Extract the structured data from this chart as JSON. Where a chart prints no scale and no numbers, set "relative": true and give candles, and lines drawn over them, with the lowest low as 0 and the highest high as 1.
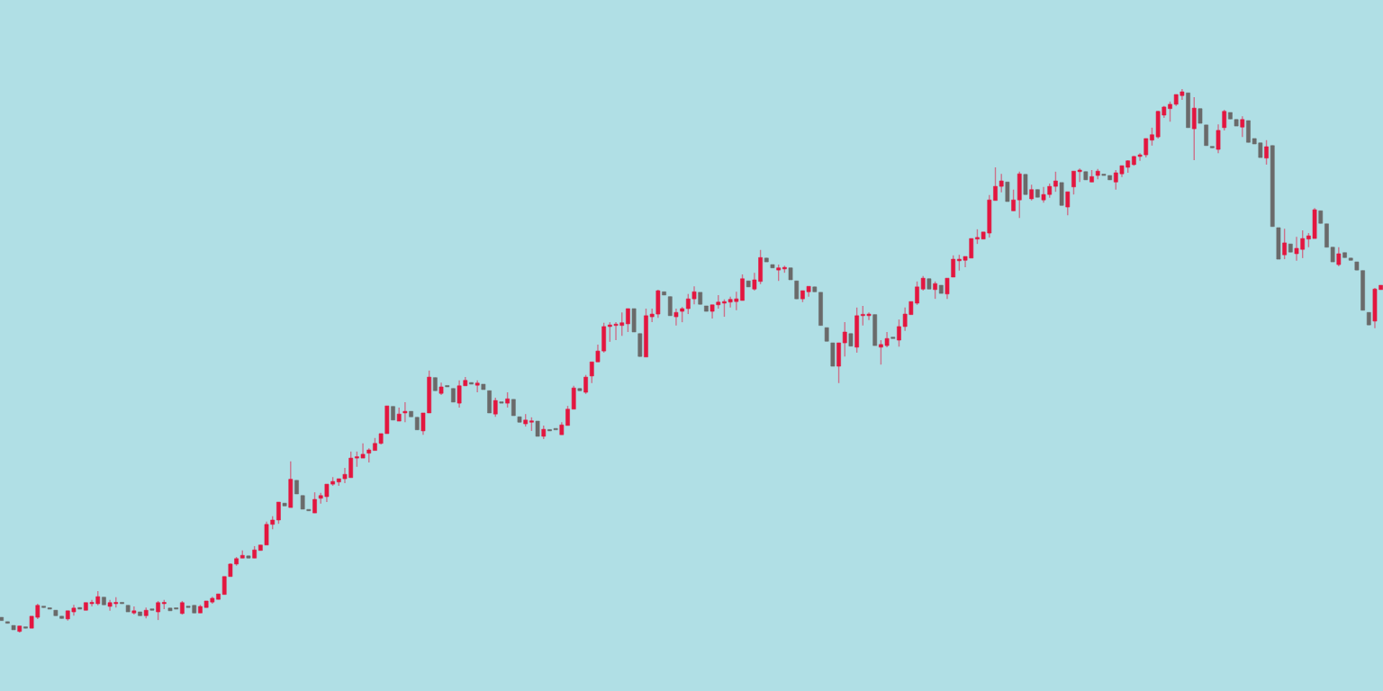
{
  "chart_data": {
    "type": "candlestick",
    "relative": true,
    "colors": [
      "#6a6a6a",
      "#6a6a6a",
      "#6a6a6a",
      "#e3163f",
      "#6a6a6a",
      "#e3163f",
      "#e3163f",
      "#6a6a6a",
      "#6a6a6a",
      "#6a6a6a",
      "#6a6a6a",
      "#e3163f",
      "#e3163f",
      "#6a6a6a",
      "#e3163f",
      "#e3163f",
      "#e3163f",
      "#6a6a6a",
      "#e3163f",
      "#e3163f",
      "#6a6a6a",
      "#6a6a6a",
      "#e3163f",
      "#6a6a6a",
      "#e3163f",
      "#6a6a6a",
      "#e3163f",
      "#e3163f",
      "#6a6a6a",
      "#6a6a6a",
      "#e3163f",
      "#6a6a6a",
      "#6a6a6a",
      "#e3163f",
      "#e3163f",
      "#e3163f",
      "#e3163f",
      "#e3163f",
      "#e3163f",
      "#e3163f",
      "#e3163f",
      "#6a6a6a",
      "#e3163f",
      "#e3163f",
      "#e3163f",
      "#e3163f",
      "#e3163f",
      "#6a6a6a",
      "#e3163f",
      "#6a6a6a",
      "#6a6a6a",
      "#6a6a6a",
      "#e3163f",
      "#e3163f",
      "#e3163f",
      "#e3163f",
      "#e3163f",
      "#e3163f",
      "#e3163f",
      "#e3163f",
      "#e3163f",
      "#e3163f",
      "#e3163f",
      "#e3163f",
      "#e3163f",
      "#6a6a6a",
      "#e3163f",
      "#e3163f",
      "#6a6a6a",
      "#6a6a6a",
      "#e3163f",
      "#e3163f",
      "#6a6a6a",
      "#e3163f",
      "#6a6a6a",
      "#6a6a6a",
      "#e3163f",
      "#e3163f",
      "#6a6a6a",
      "#e3163f",
      "#6a6a6a",
      "#6a6a6a",
      "#e3163f",
      "#6a6a6a",
      "#e3163f",
      "#6a6a6a",
      "#6a6a6a",
      "#e3163f",
      "#e3163f",
      "#6a6a6a",
      "#e3163f",
      "#6a6a6a",
      "#6a6a6a",
      "#e3163f",
      "#e3163f",
      "#e3163f",
      "#6a6a6a",
      "#e3163f",
      "#e3163f",
      "#e3163f",
      "#e3163f",
      "#e3163f",
      "#e3163f",
      "#e3163f",
      "#e3163f",
      "#6a6a6a",
      "#6a6a6a",
      "#e3163f",
      "#e3163f",
      "#e3163f",
      "#6a6a6a",
      "#6a6a6a",
      "#e3163f",
      "#e3163f",
      "#e3163f",
      "#e3163f",
      "#6a6a6a",
      "#6a6a6a",
      "#e3163f",
      "#e3163f",
      "#e3163f",
      "#e3163f",
      "#e3163f",
      "#e3163f",
      "#6a6a6a",
      "#e3163f",
      "#e3163f",
      "#6a6a6a",
      "#6a6a6a",
      "#e3163f",
      "#e3163f",
      "#6a6a6a",
      "#6a6a6a",
      "#e3163f",
      "#e3163f",
      "#6a6a6a",
      "#6a6a6a",
      "#6a6a6a",
      "#6a6a6a",
      "#e3163f",
      "#e3163f",
      "#6a6a6a",
      "#e3163f",
      "#e3163f",
      "#e3163f",
      "#6a6a6a",
      "#e3163f",
      "#e3163f",
      "#6a6a6a",
      "#e3163f",
      "#e3163f",
      "#e3163f",
      "#e3163f",
      "#e3163f",
      "#6a6a6a",
      "#e3163f",
      "#6a6a6a",
      "#e3163f",
      "#e3163f",
      "#e3163f",
      "#e3163f",
      "#e3163f",
      "#e3163f",
      "#e3163f",
      "#e3163f",
      "#e3163f",
      "#e3163f",
      "#6a6a6a",
      "#e3163f",
      "#e3163f",
      "#6a6a6a",
      "#e3163f",
      "#6a6a6a",
      "#e3163f",
      "#e3163f",
      "#e3163f",
      "#6a6a6a",
      "#e3163f",
      "#e3163f",
      "#e3163f",
      "#6a6a6a",
      "#e3163f",
      "#e3163f",
      "#6a6a6a",
      "#6a6a6a",
      "#e3163f",
      "#e3163f",
      "#e3163f",
      "#e3163f",
      "#e3163f",
      "#e3163f",
      "#e3163f",
      "#e3163f",
      "#e3163f",
      "#e3163f",
      "#e3163f",
      "#e3163f",
      "#6a6a6a",
      "#e3163f",
      "#6a6a6a",
      "#6a6a6a",
      "#6a6a6a",
      "#e3163f",
      "#e3163f",
      "#6a6a6a",
      "#6a6a6a",
      "#e3163f",
      "#6a6a6a",
      "#6a6a6a",
      "#6a6a6a",
      "#e3163f",
      "#6a6a6a",
      "#6a6a6a",
      "#e3163f",
      "#6a6a6a",
      "#e3163f",
      "#e3163f",
      "#e3163f",
      "#e3163f",
      "#6a6a6a",
      "#6a6a6a",
      "#6a6a6a",
      "#e3163f",
      "#6a6a6a",
      "#6a6a6a",
      "#6a6a6a",
      "#6a6a6a",
      "#6a6a6a",
      "#e3163f",
      "#e3163f"
    ],
    "categories": [
      null,
      null,
      null,
      null,
      null,
      null,
      null,
      null,
      null,
      null,
      null,
      null,
      null,
      null,
      null,
      null,
      null,
      null,
      null,
      null,
      null,
      null,
      null,
      null,
      null,
      null,
      null,
      null,
      null,
      null,
      null,
      null,
      null,
      null,
      null,
      null,
      null,
      null,
      null,
      null,
      null,
      null,
      null,
      null,
      null,
      null,
      null,
      null,
      null,
      null,
      null,
      null,
      null,
      null,
      null,
      null,
      null,
      null,
      null,
      null,
      null,
      null,
      null,
      null,
      null,
      null,
      null,
      null,
      null,
      null,
      null,
      null,
      null,
      null,
      null,
      null,
      null,
      null,
      null,
      null,
      null,
      null,
      null,
      null,
      null,
      null,
      null,
      null,
      null,
      null,
      null,
      null,
      null,
      null,
      null,
      null,
      null,
      null,
      null,
      null,
      null,
      null,
      null,
      null,
      null,
      null,
      null,
      null,
      null,
      null,
      null,
      null,
      null,
      null,
      null,
      null,
      null,
      null,
      null,
      null,
      null,
      null,
      null,
      null,
      null,
      null,
      null,
      null,
      null,
      null,
      null,
      null,
      null,
      null,
      null,
      null,
      null,
      null,
      null,
      null,
      null,
      null,
      null,
      null,
      null,
      null,
      null,
      null,
      null,
      null,
      null,
      null,
      null,
      null,
      null,
      null,
      null,
      null,
      null,
      null,
      null,
      null,
      null,
      null,
      null,
      null,
      null,
      null,
      null,
      null,
      null,
      null,
      null,
      null,
      null,
      null,
      null,
      null,
      null,
      null,
      null,
      null,
      null,
      null,
      null,
      null,
      null,
      null,
      null,
      null,
      null,
      null,
      null,
      null,
      null,
      null,
      null,
      null,
      null,
      null,
      null,
      null,
      null,
      null,
      null,
      null,
      null,
      null,
      null,
      null,
      null,
      null,
      null,
      null,
      null,
      null,
      null,
      null,
      null,
      null,
      null,
      null,
      null,
      null,
      null,
      null,
      null,
      null,
      null,
      null
    ],
    "ohlc": [
      [
        0.028,
        0.028,
        0.022,
        0.022
      ],
      [
        0.02,
        0.02,
        0.017,
        0.017
      ],
      [
        0.013,
        0.013,
        0.005,
        0.005
      ],
      [
        0.002,
        0.012,
        0,
        0.012
      ],
      [
        0.01,
        0.01,
        0.008,
        0.008
      ],
      [
        0.008,
        0.03,
        0.008,
        0.03
      ],
      [
        0.028,
        0.053,
        0.025,
        0.05
      ],
      [
        0.048,
        0.048,
        0.046,
        0.046
      ],
      [
        0.045,
        0.045,
        0.043,
        0.043
      ],
      [
        0.041,
        0.041,
        0.031,
        0.031
      ],
      [
        0.03,
        0.03,
        0.026,
        0.026
      ],
      [
        0.025,
        0.04,
        0.022,
        0.04
      ],
      [
        0.038,
        0.051,
        0.031,
        0.045
      ],
      [
        0.046,
        0.046,
        0.043,
        0.043
      ],
      [
        0.041,
        0.055,
        0.041,
        0.055
      ],
      [
        0.053,
        0.06,
        0.048,
        0.055
      ],
      [
        0.053,
        0.076,
        0.05,
        0.066
      ],
      [
        0.065,
        0.065,
        0.051,
        0.051
      ],
      [
        0.048,
        0.06,
        0.04,
        0.055
      ],
      [
        0.053,
        0.065,
        0.046,
        0.055
      ],
      [
        0.055,
        0.055,
        0.053,
        0.053
      ],
      [
        0.05,
        0.05,
        0.038,
        0.038
      ],
      [
        0.036,
        0.048,
        0.033,
        0.04
      ],
      [
        0.038,
        0.038,
        0.031,
        0.031
      ],
      [
        0.031,
        0.046,
        0.026,
        0.041
      ],
      [
        0.043,
        0.043,
        0.041,
        0.041
      ],
      [
        0.038,
        0.058,
        0.023,
        0.055
      ],
      [
        0.053,
        0.06,
        0.043,
        0.055
      ],
      [
        0.045,
        0.045,
        0.04,
        0.04
      ],
      [
        0.043,
        0.043,
        0.043,
        0.043
      ],
      [
        0.035,
        0.058,
        0.033,
        0.055
      ],
      [
        0.046,
        0.046,
        0.046,
        0.046
      ],
      [
        0.05,
        0.05,
        0.036,
        0.036
      ],
      [
        0.036,
        0.051,
        0.036,
        0.048
      ],
      [
        0.046,
        0.058,
        0.046,
        0.058
      ],
      [
        0.056,
        0.066,
        0.053,
        0.063
      ],
      [
        0.061,
        0.071,
        0.061,
        0.071
      ],
      [
        0.07,
        0.103,
        0.07,
        0.103
      ],
      [
        0.103,
        0.127,
        0.103,
        0.126
      ],
      [
        0.126,
        0.139,
        0.123,
        0.136
      ],
      [
        0.137,
        0.151,
        0.137,
        0.142
      ],
      [
        0.141,
        0.141,
        0.137,
        0.137
      ],
      [
        0.137,
        0.159,
        0.137,
        0.152
      ],
      [
        0.151,
        0.161,
        0.151,
        0.161
      ],
      [
        0.161,
        0.204,
        0.161,
        0.199
      ],
      [
        0.199,
        0.214,
        0.19,
        0.207
      ],
      [
        0.207,
        0.24,
        0.2,
        0.24
      ],
      [
        0.238,
        0.238,
        0.233,
        0.233
      ],
      [
        0.23,
        0.315,
        0.23,
        0.282
      ],
      [
        0.28,
        0.28,
        0.255,
        0.255
      ],
      [
        0.252,
        0.252,
        0.227,
        0.227
      ],
      [
        0.225,
        0.225,
        0.224,
        0.224
      ],
      [
        0.22,
        0.258,
        0.22,
        0.245
      ],
      [
        0.247,
        0.257,
        0.237,
        0.252
      ],
      [
        0.25,
        0.273,
        0.24,
        0.273
      ],
      [
        0.273,
        0.286,
        0.27,
        0.278
      ],
      [
        0.277,
        0.283,
        0.27,
        0.283
      ],
      [
        0.283,
        0.303,
        0.275,
        0.291
      ],
      [
        0.285,
        0.333,
        0.285,
        0.321
      ],
      [
        0.321,
        0.333,
        0.305,
        0.323
      ],
      [
        0.321,
        0.348,
        0.321,
        0.328
      ],
      [
        0.33,
        0.339,
        0.313,
        0.336
      ],
      [
        0.335,
        0.358,
        0.335,
        0.348
      ],
      [
        0.348,
        0.366,
        0.346,
        0.366
      ],
      [
        0.366,
        0.417,
        0.366,
        0.417
      ],
      [
        0.416,
        0.416,
        0.391,
        0.391
      ],
      [
        0.389,
        0.414,
        0.389,
        0.402
      ],
      [
        0.404,
        0.424,
        0.387,
        0.407
      ],
      [
        0.407,
        0.407,
        0.397,
        0.397
      ],
      [
        0.396,
        0.396,
        0.373,
        0.373
      ],
      [
        0.371,
        0.404,
        0.364,
        0.404
      ],
      [
        0.404,
        0.482,
        0.404,
        0.47
      ],
      [
        0.469,
        0.469,
        0.445,
        0.445
      ],
      [
        0.44,
        0.46,
        0.437,
        0.452
      ],
      [
        0.452,
        0.452,
        0.452,
        0.452
      ],
      [
        0.449,
        0.449,
        0.424,
        0.424
      ],
      [
        0.422,
        0.464,
        0.414,
        0.454
      ],
      [
        0.454,
        0.47,
        0.454,
        0.464
      ],
      [
        0.46,
        0.46,
        0.457,
        0.457
      ],
      [
        0.455,
        0.464,
        0.442,
        0.459
      ],
      [
        0.457,
        0.457,
        0.447,
        0.447
      ],
      [
        0.445,
        0.445,
        0.404,
        0.404
      ],
      [
        0.402,
        0.432,
        0.397,
        0.427
      ],
      [
        0.424,
        0.424,
        0.422,
        0.422
      ],
      [
        0.422,
        0.442,
        0.414,
        0.43
      ],
      [
        0.429,
        0.429,
        0.399,
        0.399
      ],
      [
        0.397,
        0.397,
        0.387,
        0.387
      ],
      [
        0.384,
        0.402,
        0.379,
        0.391
      ],
      [
        0.387,
        0.396,
        0.371,
        0.389
      ],
      [
        0.389,
        0.389,
        0.361,
        0.361
      ],
      [
        0.361,
        0.381,
        0.356,
        0.374
      ],
      [
        0.373,
        0.373,
        0.371,
        0.371
      ],
      [
        0.373,
        0.373,
        0.373,
        0.373
      ],
      [
        0.364,
        0.387,
        0.364,
        0.382
      ],
      [
        0.381,
        0.417,
        0.381,
        0.411
      ],
      [
        0.411,
        0.454,
        0.411,
        0.45
      ],
      [
        0.449,
        0.449,
        0.445,
        0.445
      ],
      [
        0.442,
        0.474,
        0.439,
        0.47
      ],
      [
        0.472,
        0.498,
        0.459,
        0.498
      ],
      [
        0.498,
        0.53,
        0.498,
        0.518
      ],
      [
        0.518,
        0.57,
        0.515,
        0.563
      ],
      [
        0.563,
        0.571,
        0.535,
        0.566
      ],
      [
        0.565,
        0.571,
        0.538,
        0.566
      ],
      [
        0.565,
        0.589,
        0.546,
        0.57
      ],
      [
        0.568,
        0.596,
        0.553,
        0.596
      ],
      [
        0.596,
        0.596,
        0.553,
        0.553
      ],
      [
        0.55,
        0.55,
        0.508,
        0.508
      ],
      [
        0.507,
        0.596,
        0.507,
        0.583
      ],
      [
        0.581,
        0.596,
        0.571,
        0.586
      ],
      [
        0.586,
        0.631,
        0.579,
        0.629
      ],
      [
        0.627,
        0.627,
        0.621,
        0.621
      ],
      [
        0.618,
        0.618,
        0.583,
        0.583
      ],
      [
        0.581,
        0.596,
        0.565,
        0.589
      ],
      [
        0.591,
        0.599,
        0.571,
        0.596
      ],
      [
        0.596,
        0.623,
        0.586,
        0.614
      ],
      [
        0.614,
        0.637,
        0.604,
        0.627
      ],
      [
        0.626,
        0.626,
        0.604,
        0.604
      ],
      [
        0.601,
        0.601,
        0.591,
        0.591
      ],
      [
        0.591,
        0.603,
        0.578,
        0.603
      ],
      [
        0.603,
        0.621,
        0.596,
        0.608
      ],
      [
        0.606,
        0.613,
        0.581,
        0.609
      ],
      [
        0.608,
        0.618,
        0.598,
        0.613
      ],
      [
        0.609,
        0.627,
        0.593,
        0.614
      ],
      [
        0.611,
        0.659,
        0.611,
        0.651
      ],
      [
        0.647,
        0.647,
        0.636,
        0.636
      ],
      [
        0.632,
        0.662,
        0.629,
        0.649
      ],
      [
        0.646,
        0.704,
        0.641,
        0.69
      ],
      [
        0.689,
        0.689,
        0.682,
        0.682
      ],
      [
        0.677,
        0.677,
        0.671,
        0.671
      ],
      [
        0.667,
        0.677,
        0.647,
        0.671
      ],
      [
        0.669,
        0.675,
        0.662,
        0.672
      ],
      [
        0.671,
        0.671,
        0.649,
        0.649
      ],
      [
        0.647,
        0.647,
        0.614,
        0.614
      ],
      [
        0.614,
        0.629,
        0.608,
        0.629
      ],
      [
        0.627,
        0.637,
        0.618,
        0.637
      ],
      [
        0.636,
        0.636,
        0.627,
        0.627
      ],
      [
        0.626,
        0.626,
        0.565,
        0.565
      ],
      [
        0.561,
        0.561,
        0.536,
        0.536
      ],
      [
        0.533,
        0.533,
        0.49,
        0.49
      ],
      [
        0.49,
        0.533,
        0.459,
        0.533
      ],
      [
        0.533,
        0.571,
        0.508,
        0.553
      ],
      [
        0.55,
        0.55,
        0.527,
        0.527
      ],
      [
        0.525,
        0.598,
        0.515,
        0.583
      ],
      [
        0.583,
        0.601,
        0.565,
        0.585
      ],
      [
        0.583,
        0.589,
        0.575,
        0.586
      ],
      [
        0.585,
        0.585,
        0.528,
        0.528
      ],
      [
        0.525,
        0.538,
        0.493,
        0.53
      ],
      [
        0.528,
        0.553,
        0.525,
        0.541
      ],
      [
        0.541,
        0.541,
        0.541,
        0.541
      ],
      [
        0.538,
        0.576,
        0.526,
        0.563
      ],
      [
        0.563,
        0.598,
        0.555,
        0.586
      ],
      [
        0.585,
        0.609,
        0.585,
        0.609
      ],
      [
        0.606,
        0.646,
        0.603,
        0.636
      ],
      [
        0.632,
        0.656,
        0.629,
        0.652
      ],
      [
        0.651,
        0.651,
        0.632,
        0.632
      ],
      [
        0.631,
        0.646,
        0.614,
        0.642
      ],
      [
        0.639,
        0.639,
        0.624,
        0.624
      ],
      [
        0.623,
        0.652,
        0.614,
        0.652
      ],
      [
        0.654,
        0.694,
        0.654,
        0.687
      ],
      [
        0.684,
        0.695,
        0.666,
        0.687
      ],
      [
        0.685,
        0.692,
        0.672,
        0.692
      ],
      [
        0.689,
        0.725,
        0.689,
        0.725
      ],
      [
        0.724,
        0.742,
        0.715,
        0.727
      ],
      [
        0.724,
        0.737,
        0.724,
        0.737
      ],
      [
        0.735,
        0.805,
        0.727,
        0.796
      ],
      [
        0.795,
        0.856,
        0.795,
        0.821
      ],
      [
        0.821,
        0.844,
        0.81,
        0.831
      ],
      [
        0.829,
        0.829,
        0.793,
        0.793
      ],
      [
        0.776,
        0.815,
        0.776,
        0.796
      ],
      [
        0.796,
        0.848,
        0.763,
        0.844
      ],
      [
        0.843,
        0.843,
        0.806,
        0.806
      ],
      [
        0.798,
        0.824,
        0.795,
        0.815
      ],
      [
        0.815,
        0.815,
        0.801,
        0.801
      ],
      [
        0.796,
        0.82,
        0.791,
        0.806
      ],
      [
        0.806,
        0.826,
        0.8,
        0.821
      ],
      [
        0.821,
        0.848,
        0.811,
        0.831
      ],
      [
        0.828,
        0.828,
        0.786,
        0.786
      ],
      [
        0.783,
        0.811,
        0.768,
        0.811
      ],
      [
        0.82,
        0.849,
        0.806,
        0.849
      ],
      [
        0.848,
        0.854,
        0.829,
        0.851
      ],
      [
        0.848,
        0.848,
        0.833,
        0.833
      ],
      [
        0.829,
        0.851,
        0.829,
        0.839
      ],
      [
        0.841,
        0.853,
        0.834,
        0.849
      ],
      [
        0.841,
        0.841,
        0.841,
        0.841
      ],
      [
        0.841,
        0.841,
        0.833,
        0.833
      ],
      [
        0.829,
        0.851,
        0.815,
        0.846
      ],
      [
        0.844,
        0.859,
        0.838,
        0.859
      ],
      [
        0.856,
        0.869,
        0.846,
        0.868
      ],
      [
        0.861,
        0.877,
        0.859,
        0.876
      ],
      [
        0.876,
        0.882,
        0.868,
        0.879
      ],
      [
        0.879,
        0.909,
        0.874,
        0.909
      ],
      [
        0.906,
        0.929,
        0.896,
        0.916
      ],
      [
        0.912,
        0.96,
        0.909,
        0.959
      ],
      [
        0.952,
        0.969,
        0.947,
        0.967
      ],
      [
        0.964,
        0.977,
        0.94,
        0.972
      ],
      [
        0.972,
        0.99,
        0.969,
        0.99
      ],
      [
        0.988,
        1,
        0.98,
        0.995
      ],
      [
        0.993,
        0.993,
        0.929,
        0.929
      ],
      [
        0.927,
        0.985,
        0.869,
        0.965
      ],
      [
        0.964,
        0.964,
        0.937,
        0.937
      ],
      [
        0.934,
        0.934,
        0.896,
        0.896
      ],
      [
        0.894,
        0.894,
        0.892,
        0.892
      ],
      [
        0.889,
        0.935,
        0.882,
        0.924
      ],
      [
        0.929,
        0.962,
        0.924,
        0.959
      ],
      [
        0.957,
        0.957,
        0.945,
        0.945
      ],
      [
        0.944,
        0.944,
        0.932,
        0.932
      ],
      [
        0.93,
        0.95,
        0.912,
        0.944
      ],
      [
        0.942,
        0.942,
        0.902,
        0.902
      ],
      [
        0.909,
        0.909,
        0.899,
        0.899
      ],
      [
        0.901,
        0.901,
        0.874,
        0.874
      ],
      [
        0.873,
        0.906,
        0.861,
        0.894
      ],
      [
        0.896,
        0.896,
        0.747,
        0.747
      ],
      [
        0.745,
        0.745,
        0.687,
        0.687
      ],
      [
        0.695,
        0.743,
        0.687,
        0.717
      ],
      [
        0.715,
        0.715,
        0.7,
        0.7
      ],
      [
        0.697,
        0.728,
        0.684,
        0.707
      ],
      [
        0.705,
        0.74,
        0.689,
        0.725
      ],
      [
        0.724,
        0.735,
        0.709,
        0.73
      ],
      [
        0.725,
        0.781,
        0.725,
        0.778
      ],
      [
        0.776,
        0.776,
        0.753,
        0.753
      ],
      [
        0.752,
        0.752,
        0.709,
        0.709
      ],
      [
        0.709,
        0.709,
        0.682,
        0.682
      ],
      [
        0.677,
        0.709,
        0.674,
        0.697
      ],
      [
        0.699,
        0.699,
        0.69,
        0.69
      ],
      [
        0.689,
        0.689,
        0.685,
        0.685
      ],
      [
        0.682,
        0.682,
        0.667,
        0.667
      ],
      [
        0.666,
        0.666,
        0.593,
        0.593
      ],
      [
        0.589,
        0.589,
        0.566,
        0.566
      ],
      [
        0.573,
        0.634,
        0.56,
        0.632
      ],
      [
        0.631,
        0.639,
        0.631,
        0.639
      ]
    ]
  }
}
